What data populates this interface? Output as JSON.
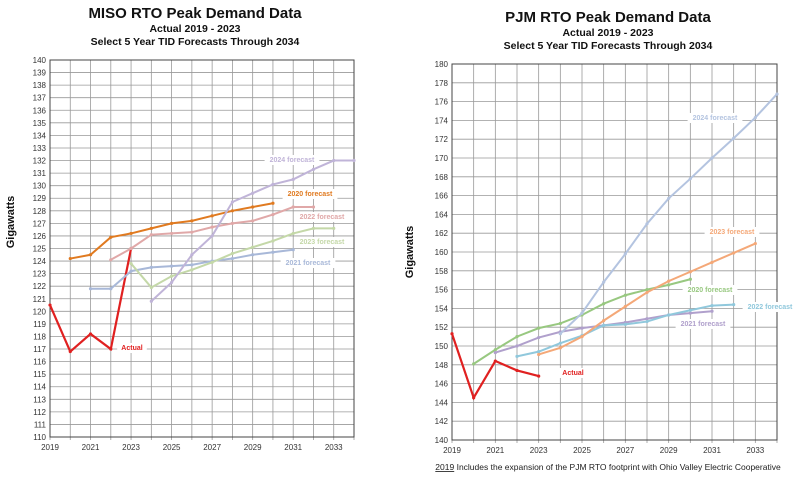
{
  "chart_data": [
    {
      "type": "line",
      "title": "MISO RTO  Peak Demand Data",
      "subtitle": [
        "Actual 2019 - 2023",
        "Select 5 Year TID Forecasts Through 2034"
      ],
      "ylabel": "Gigawatts",
      "xlabel": "",
      "xlim": [
        2019,
        2034
      ],
      "ylim": [
        110,
        140
      ],
      "yticks_step": 1,
      "xtick_labels": [
        "2019",
        "2021",
        "2023",
        "2025",
        "2027",
        "2029",
        "2031",
        "2033"
      ],
      "grid": true,
      "series": [
        {
          "name": "Actual",
          "color": "#e02020",
          "x": [
            2019,
            2020,
            2021,
            2022,
            2023
          ],
          "values": [
            120.5,
            116.8,
            118.2,
            117.0,
            125.0
          ]
        },
        {
          "name": "2020 forecast",
          "color": "#e07a20",
          "x": [
            2020,
            2021,
            2022,
            2023,
            2024,
            2025,
            2026,
            2027,
            2028,
            2029,
            2030
          ],
          "values": [
            124.2,
            124.5,
            125.9,
            126.2,
            126.6,
            127.0,
            127.2,
            127.6,
            128.0,
            128.3,
            128.6
          ]
        },
        {
          "name": "2021 forecast",
          "color": "#a8b8d8",
          "x": [
            2021,
            2022,
            2023,
            2024,
            2025,
            2026,
            2027,
            2028,
            2029,
            2030,
            2031
          ],
          "values": [
            121.8,
            121.8,
            123.2,
            123.5,
            123.6,
            123.7,
            124.0,
            124.2,
            124.5,
            124.7,
            124.9
          ]
        },
        {
          "name": "2022 forecast",
          "color": "#e0a8a8",
          "x": [
            2022,
            2023,
            2024,
            2025,
            2026,
            2027,
            2028,
            2029,
            2030,
            2031,
            2032
          ],
          "values": [
            124.1,
            125.0,
            126.1,
            126.2,
            126.3,
            126.7,
            127.0,
            127.2,
            127.7,
            128.3,
            128.3
          ]
        },
        {
          "name": "2023 forecast",
          "color": "#c4d8a8",
          "x": [
            2023,
            2024,
            2025,
            2026,
            2027,
            2028,
            2029,
            2030,
            2031,
            2032,
            2033
          ],
          "values": [
            123.8,
            121.9,
            122.8,
            123.3,
            123.9,
            124.6,
            125.1,
            125.6,
            126.2,
            126.6,
            126.6
          ]
        },
        {
          "name": "2024 forecast",
          "color": "#c0b4d8",
          "x": [
            2024,
            2025,
            2026,
            2027,
            2028,
            2029,
            2030,
            2031,
            2032,
            2033,
            2034
          ],
          "values": [
            120.8,
            122.3,
            124.5,
            126.0,
            128.7,
            129.4,
            130.1,
            130.5,
            131.3,
            132.0,
            132.0
          ]
        }
      ]
    },
    {
      "type": "line",
      "title": "PJM  RTO Peak Demand Data",
      "subtitle": [
        "Actual 2019 - 2023",
        "Select 5 Year TID Forecasts Through 2034"
      ],
      "ylabel": "Gigawatts",
      "xlabel": "",
      "xlim": [
        2019,
        2034
      ],
      "ylim": [
        140,
        180
      ],
      "yticks_step": 2,
      "xtick_labels": [
        "2019",
        "2021",
        "2023",
        "2025",
        "2027",
        "2029",
        "2031",
        "2033"
      ],
      "grid": true,
      "footnote": {
        "underlined": "2019",
        "text": " Includes the expansion of the PJM RTO footprint with Ohio Valley Electric Cooperative"
      },
      "series": [
        {
          "name": "Actual",
          "color": "#e02020",
          "x": [
            2019,
            2020,
            2021,
            2022,
            2023
          ],
          "values": [
            151.3,
            144.5,
            148.4,
            147.4,
            146.8
          ]
        },
        {
          "name": "2020 forecast",
          "color": "#98c880",
          "x": [
            2020,
            2021,
            2022,
            2023,
            2024,
            2025,
            2026,
            2027,
            2028,
            2029,
            2030
          ],
          "values": [
            148.1,
            149.6,
            151.0,
            151.9,
            152.4,
            153.3,
            154.5,
            155.4,
            156.0,
            156.5,
            157.1
          ]
        },
        {
          "name": "2021 forecast",
          "color": "#b0a0cc",
          "x": [
            2021,
            2022,
            2023,
            2024,
            2025,
            2026,
            2027,
            2028,
            2029,
            2030,
            2031
          ],
          "values": [
            149.3,
            150.0,
            150.9,
            151.5,
            151.9,
            152.2,
            152.5,
            152.9,
            153.3,
            153.5,
            153.7
          ]
        },
        {
          "name": "2022 forecast",
          "color": "#90c8dc",
          "x": [
            2022,
            2023,
            2024,
            2025,
            2026,
            2027,
            2028,
            2029,
            2030,
            2031,
            2032
          ],
          "values": [
            148.9,
            149.4,
            150.3,
            151.1,
            152.2,
            152.3,
            152.6,
            153.3,
            153.8,
            154.3,
            154.4
          ]
        },
        {
          "name": "2023 forecast",
          "color": "#f4a878",
          "x": [
            2023,
            2024,
            2025,
            2026,
            2027,
            2028,
            2029,
            2030,
            2031,
            2032,
            2033
          ],
          "values": [
            149.1,
            149.8,
            151.0,
            152.7,
            154.2,
            155.7,
            156.9,
            157.9,
            158.9,
            159.9,
            160.9
          ]
        },
        {
          "name": "2024 forecast",
          "color": "#b4c4e0",
          "x": [
            2024,
            2025,
            2026,
            2027,
            2028,
            2029,
            2030,
            2031,
            2032,
            2033,
            2034
          ],
          "values": [
            151.3,
            153.5,
            156.8,
            159.8,
            163.0,
            165.7,
            167.8,
            170.0,
            172.1,
            174.3,
            176.8
          ]
        }
      ]
    }
  ]
}
